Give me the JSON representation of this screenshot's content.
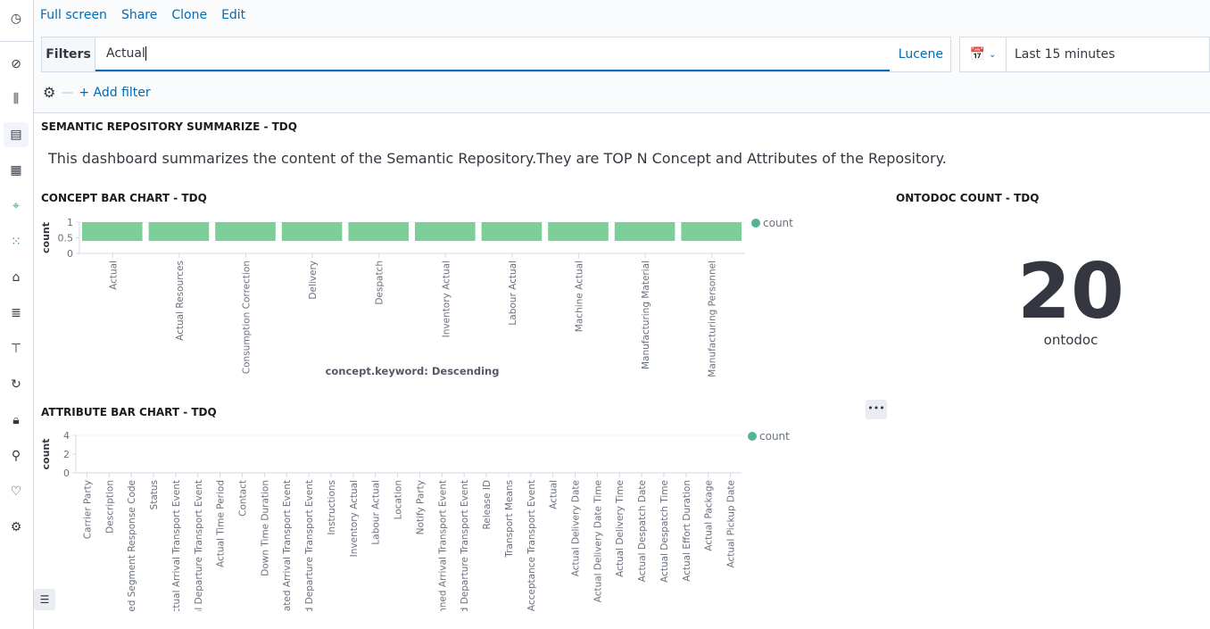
{
  "sidebar": {
    "items": [
      "clock-icon",
      "compass-icon",
      "visualize-icon",
      "dashboard-icon",
      "canvas-icon",
      "maps-icon",
      "ml-icon",
      "infra-icon",
      "logs-icon",
      "apm-icon",
      "uptime-icon",
      "security-icon",
      "devtools-icon",
      "monitoring-icon",
      "management-icon"
    ],
    "active": 3
  },
  "toolbar": {
    "full_screen": "Full screen",
    "share": "Share",
    "clone": "Clone",
    "edit": "Edit"
  },
  "filter": {
    "label": "Filters",
    "query": "Actual",
    "language": "Lucene",
    "add_filter": "+ Add filter"
  },
  "time": {
    "range": "Last 15 minutes"
  },
  "panels": {
    "markdown": {
      "title": "SEMANTIC REPOSITORY SUMMARIZE - TDQ",
      "text": "This dashboard summarizes the content of the Semantic Repository.They are TOP N Concept and Attributes of the Repository."
    },
    "metric": {
      "title": "ONTODOC COUNT - TDQ",
      "value": "20",
      "label": "ontodoc"
    }
  },
  "colors": {
    "bar": "#7dcf99",
    "legend": "#54b399",
    "link": "#006bb4"
  },
  "chart_data": [
    {
      "type": "bar",
      "title": "CONCEPT BAR CHART - TDQ",
      "ylabel": "count",
      "xlabel": "concept.keyword: Descending",
      "legend": "count",
      "legend_position": "right",
      "ylim": [
        0,
        1
      ],
      "yticks": [
        "0",
        "0.5",
        "1"
      ],
      "categories": [
        "Actual",
        "Actual Resources",
        "Consumption Correction",
        "Delivery",
        "Despatch",
        "Inventory Actual",
        "Labour Actual",
        "Machine Actual",
        "Manufacturing Material",
        "Manufacturing Personnel"
      ],
      "values": [
        1,
        1,
        1,
        1,
        1,
        1,
        1,
        1,
        1,
        1
      ]
    },
    {
      "type": "bar",
      "title": "ATTRIBUTE BAR CHART - TDQ",
      "ylabel": "count",
      "xlabel": "",
      "legend": "count",
      "legend_position": "right",
      "ylim": [
        0,
        4
      ],
      "yticks": [
        "0",
        "2",
        "4"
      ],
      "categories": [
        "Carrier Party",
        "Description",
        "Requested Segment Response Code",
        "Status",
        "Actual Arrival Transport Event",
        "Actual Departure Transport Event",
        "Actual Time Period",
        "Contact",
        "Down Time Duration",
        "Estimated Arrival Transport Event",
        "Estimated Departure Transport Event",
        "Instructions",
        "Inventory Actual",
        "Labour Actual",
        "Location",
        "Notify Party",
        "Planned Arrival Transport Event",
        "Planned Departure Transport Event",
        "Release ID",
        "Transport Means",
        "Acceptance Transport Event",
        "Actual",
        "Actual Delivery Date",
        "Actual Delivery Date Time",
        "Actual Delivery Time",
        "Actual Despatch Date",
        "Actual Despatch Time",
        "Actual Effort Duration",
        "Actual Package",
        "Actual Pickup Date"
      ]
    }
  ]
}
